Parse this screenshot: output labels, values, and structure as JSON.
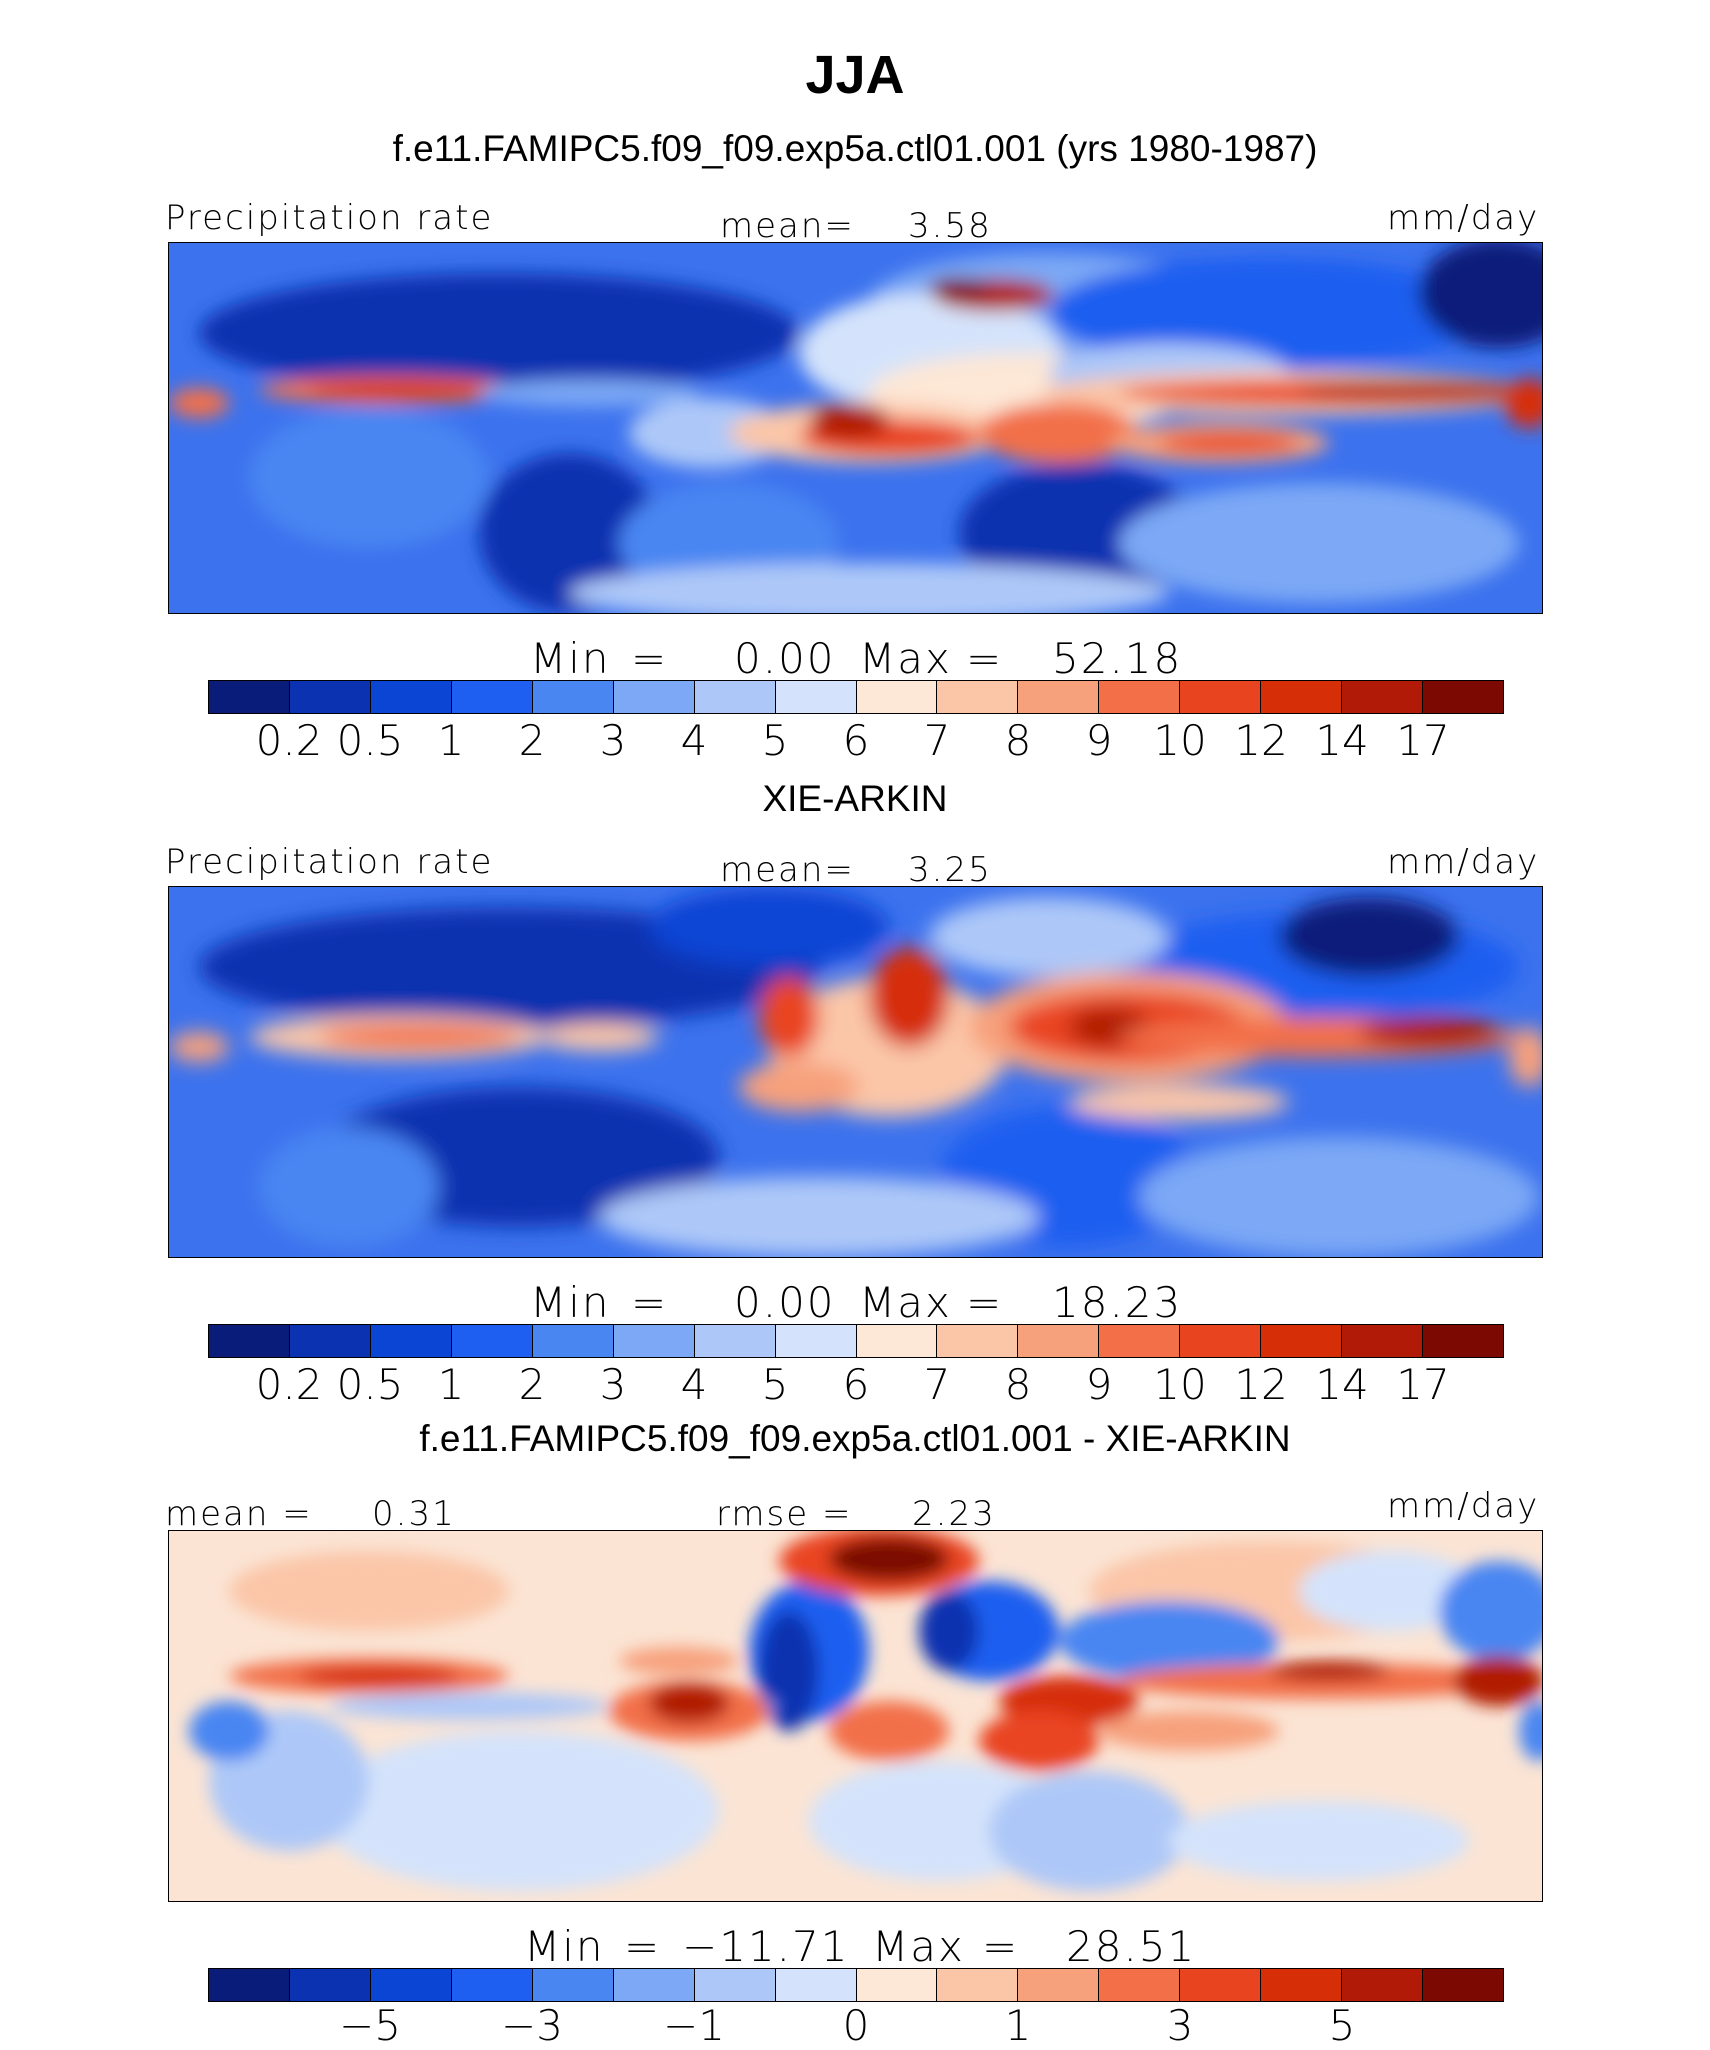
{
  "figure": {
    "title": "JJA",
    "colors": {
      "precip": [
        "#0a1c7a",
        "#0b32b0",
        "#0b45d4",
        "#1e5ef0",
        "#4a86f2",
        "#7ca8f5",
        "#adc8f8",
        "#d4e3fb",
        "#fde7d6",
        "#fbc6a8",
        "#f7a07c",
        "#f26f48",
        "#e94420",
        "#d62f08",
        "#b11a06",
        "#7c0a02"
      ],
      "diff": [
        "#0a1c7a",
        "#0b32b0",
        "#0b45d4",
        "#1e5ef0",
        "#4a86f2",
        "#7ca8f5",
        "#adc8f8",
        "#d4e3fb",
        "#fde7d6",
        "#fbc6a8",
        "#f7a07c",
        "#f26f48",
        "#e94420",
        "#d62f08",
        "#b11a06",
        "#7c0a02"
      ]
    },
    "panels": [
      {
        "subtitle": "f.e11.FAMIPC5.f09_f09.exp5a.ctl01.001 (yrs 1980-1987)",
        "left_label": "Precipitation rate",
        "center_label": "mean=",
        "center_value": "3.58",
        "right_label": "mm/day",
        "min_label": "Min",
        "min_value": "0.00",
        "max_label": "Max",
        "max_value": "52.18",
        "tick_labels": [
          "0.2",
          "0.5",
          "1",
          "2",
          "3",
          "4",
          "5",
          "6",
          "7",
          "8",
          "9",
          "10",
          "12",
          "14",
          "17"
        ]
      },
      {
        "subtitle": "XIE-ARKIN",
        "left_label": "Precipitation rate",
        "center_label": "mean=",
        "center_value": "3.25",
        "right_label": "mm/day",
        "min_label": "Min",
        "min_value": "0.00",
        "max_label": "Max",
        "max_value": "18.23",
        "tick_labels": [
          "0.2",
          "0.5",
          "1",
          "2",
          "3",
          "4",
          "5",
          "6",
          "7",
          "8",
          "9",
          "10",
          "12",
          "14",
          "17"
        ]
      },
      {
        "subtitle": "f.e11.FAMIPC5.f09_f09.exp5a.ctl01.001 - XIE-ARKIN",
        "left_label": "mean =",
        "left_value": "0.31",
        "center_label": "rmse =",
        "center_value": "2.23",
        "right_label": "mm/day",
        "min_label": "Min",
        "min_value": "−11.71",
        "max_label": "Max",
        "max_value": "28.51",
        "tick_labels": [
          "−5",
          "−3",
          "−1",
          "0",
          "1",
          "3",
          "5"
        ]
      }
    ]
  }
}
